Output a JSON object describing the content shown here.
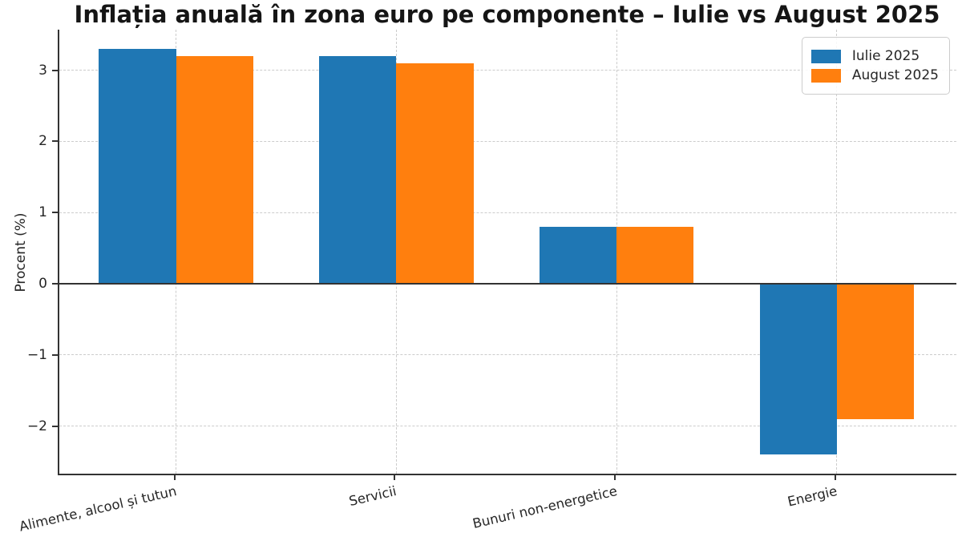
{
  "chart_data": {
    "type": "bar",
    "title": "Inflația anuală în zona euro pe componente – Iulie vs August 2025",
    "xlabel": "",
    "ylabel": "Procent (%)",
    "categories": [
      "Alimente, alcool și tutun",
      "Servicii",
      "Bunuri non-energetice",
      "Energie"
    ],
    "series": [
      {
        "name": "Iulie 2025",
        "color": "#1f77b4",
        "values": [
          3.3,
          3.2,
          0.8,
          -2.4
        ]
      },
      {
        "name": "August 2025",
        "color": "#ff7f0e",
        "values": [
          3.2,
          3.1,
          0.8,
          -1.9
        ]
      }
    ],
    "yticks": {
      "values": [
        3,
        2,
        1,
        0,
        -1,
        -2
      ],
      "labels": [
        "3",
        "2",
        "1",
        "0",
        "−1",
        "−2"
      ]
    },
    "ylim": [
      -2.69,
      3.57
    ],
    "xlim": [
      -0.53,
      3.55
    ],
    "bar_width": 0.35,
    "grid": "dashed, horizontal at integer ticks and vertical at category centers",
    "zero_line": true,
    "legend_position": "upper-right",
    "axis_color": "#333333",
    "grid_color": "#cccccc"
  }
}
